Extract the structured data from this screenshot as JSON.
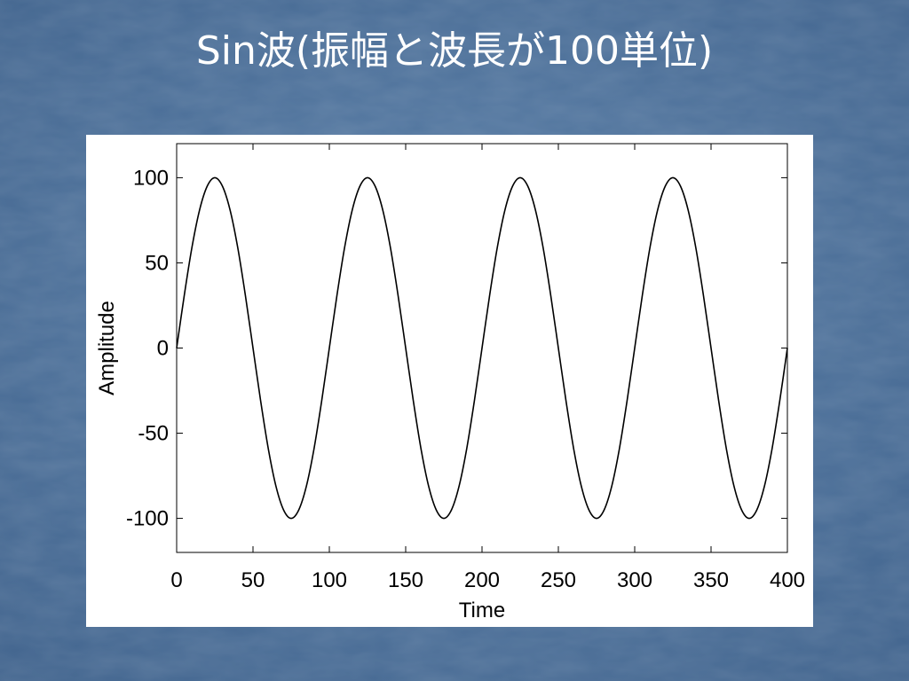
{
  "chart_data": {
    "type": "line",
    "title": "Sin波(振幅と波長が100単位)",
    "x_label": "Time",
    "y_label": "Amplitude",
    "color": "#000000",
    "xlim": [
      0,
      400
    ],
    "ylim": [
      -120,
      120
    ],
    "xticks": [
      0,
      50,
      100,
      150,
      200,
      250,
      300,
      350,
      400
    ],
    "yticks": [
      -100,
      -50,
      0,
      50,
      100
    ],
    "x": [
      0,
      5,
      10,
      15,
      20,
      25,
      30,
      35,
      40,
      45,
      50,
      55,
      60,
      65,
      70,
      75,
      80,
      85,
      90,
      95,
      100,
      105,
      110,
      115,
      120,
      125,
      130,
      135,
      140,
      145,
      150,
      155,
      160,
      165,
      170,
      175,
      180,
      185,
      190,
      195,
      200,
      205,
      210,
      215,
      220,
      225,
      230,
      235,
      240,
      245,
      250,
      255,
      260,
      265,
      270,
      275,
      280,
      285,
      290,
      295,
      300,
      305,
      310,
      315,
      320,
      325,
      330,
      335,
      340,
      345,
      350,
      355,
      360,
      365,
      370,
      375,
      380,
      385,
      390,
      395,
      400
    ],
    "values": [
      0,
      31,
      59,
      81,
      95,
      100,
      95,
      81,
      59,
      31,
      0,
      -31,
      -59,
      -81,
      -95,
      -100,
      -95,
      -81,
      -59,
      -31,
      0,
      31,
      59,
      81,
      95,
      100,
      95,
      81,
      59,
      31,
      0,
      -31,
      -59,
      -81,
      -95,
      -100,
      -95,
      -81,
      -59,
      -31,
      0,
      31,
      59,
      81,
      95,
      100,
      95,
      81,
      59,
      31,
      0,
      -31,
      -59,
      -81,
      -95,
      -100,
      -95,
      -81,
      -59,
      -31,
      0,
      31,
      59,
      81,
      95,
      100,
      95,
      81,
      59,
      31,
      0,
      -31,
      -59,
      -81,
      -95,
      -100,
      -95,
      -81,
      -59,
      -31,
      0
    ]
  }
}
